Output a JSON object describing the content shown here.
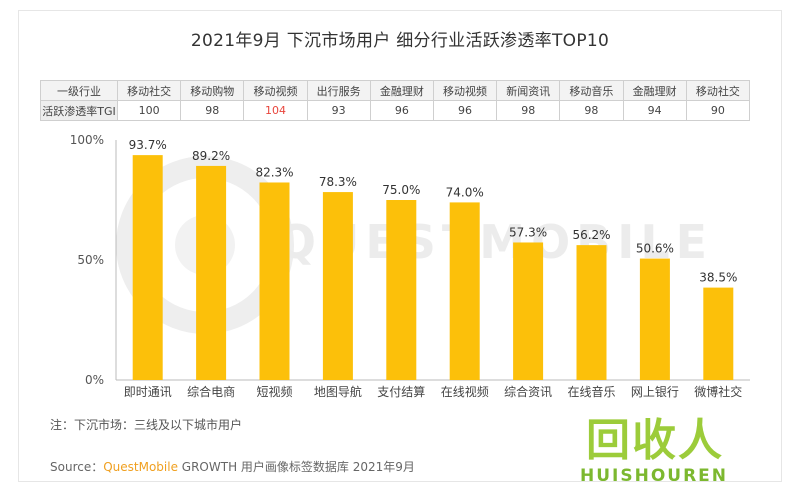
{
  "chart_data": {
    "type": "bar",
    "title": "2021年9月 下沉市场用户 细分行业活跃渗透率TOP10",
    "table": {
      "row_labels": [
        "一级行业",
        "活跃渗透率TGI"
      ],
      "industries": [
        "移动社交",
        "移动购物",
        "移动视频",
        "出行服务",
        "金融理财",
        "移动视频",
        "新闻资讯",
        "移动音乐",
        "金融理财",
        "移动社交"
      ],
      "tgi": [
        "100",
        "98",
        "104",
        "93",
        "96",
        "96",
        "98",
        "98",
        "94",
        "90"
      ]
    },
    "categories": [
      "即时通讯",
      "综合电商",
      "短视频",
      "地图导航",
      "支付结算",
      "在线视频",
      "综合资讯",
      "在线音乐",
      "网上银行",
      "微博社交"
    ],
    "values": [
      93.7,
      89.2,
      82.3,
      78.3,
      75.0,
      74.0,
      57.3,
      56.2,
      50.6,
      38.5
    ],
    "value_labels": [
      "93.7%",
      "89.2%",
      "82.3%",
      "78.3%",
      "75.0%",
      "74.0%",
      "57.3%",
      "56.2%",
      "50.6%",
      "38.5%"
    ],
    "y_ticks": [
      "0%",
      "50%",
      "100%"
    ],
    "ylim": [
      0,
      100
    ],
    "bar_color": "#fcc00a",
    "highlight_color": "#e8453c",
    "note": "注：下沉市场：三线及以下城市用户",
    "source_prefix": "Source：",
    "source_brand": "QuestMobile",
    "source_suffix": " GROWTH 用户画像标签数据库 2021年9月"
  },
  "watermark": {
    "text_big": "回收人",
    "text_small": "HUISHOUREN",
    "bg_text": "QUESTMOBILE"
  }
}
